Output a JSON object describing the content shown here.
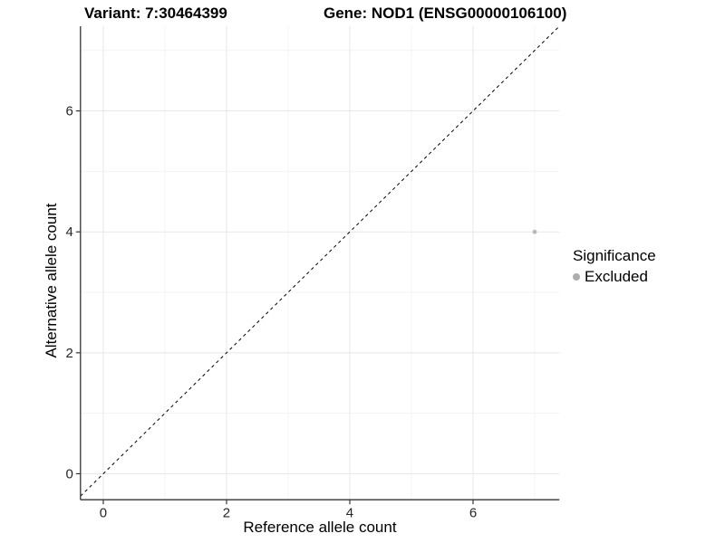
{
  "chart_data": {
    "type": "scatter",
    "title_left": "Variant: 7:30464399",
    "title_right": "Gene: NOD1 (ENSG00000106100)",
    "xlabel": "Reference allele count",
    "ylabel": "Alternative allele count",
    "xlim": [
      -0.37,
      7.4
    ],
    "ylim": [
      -0.43,
      7.4
    ],
    "x_ticks": [
      0,
      2,
      4,
      6
    ],
    "y_ticks": [
      0,
      2,
      4,
      6
    ],
    "x_minor": [
      1,
      3,
      5,
      7
    ],
    "y_minor": [
      1,
      3,
      5,
      7
    ],
    "grid": true,
    "reference_line": {
      "type": "identity",
      "style": "dashed",
      "color": "#000000"
    },
    "series": [
      {
        "name": "Excluded",
        "color": "#b9b9b9",
        "points": [
          {
            "x": 7,
            "y": 4
          }
        ]
      }
    ],
    "legend": {
      "title": "Significance",
      "position": "right",
      "items": [
        {
          "label": "Excluded",
          "color": "#adadad"
        }
      ]
    },
    "colors": {
      "background": "#ffffff",
      "grid_major": "#e7e7e7",
      "grid_minor": "#f3f3f3",
      "axis_line": "#333333",
      "tick_label": "#262626"
    }
  }
}
